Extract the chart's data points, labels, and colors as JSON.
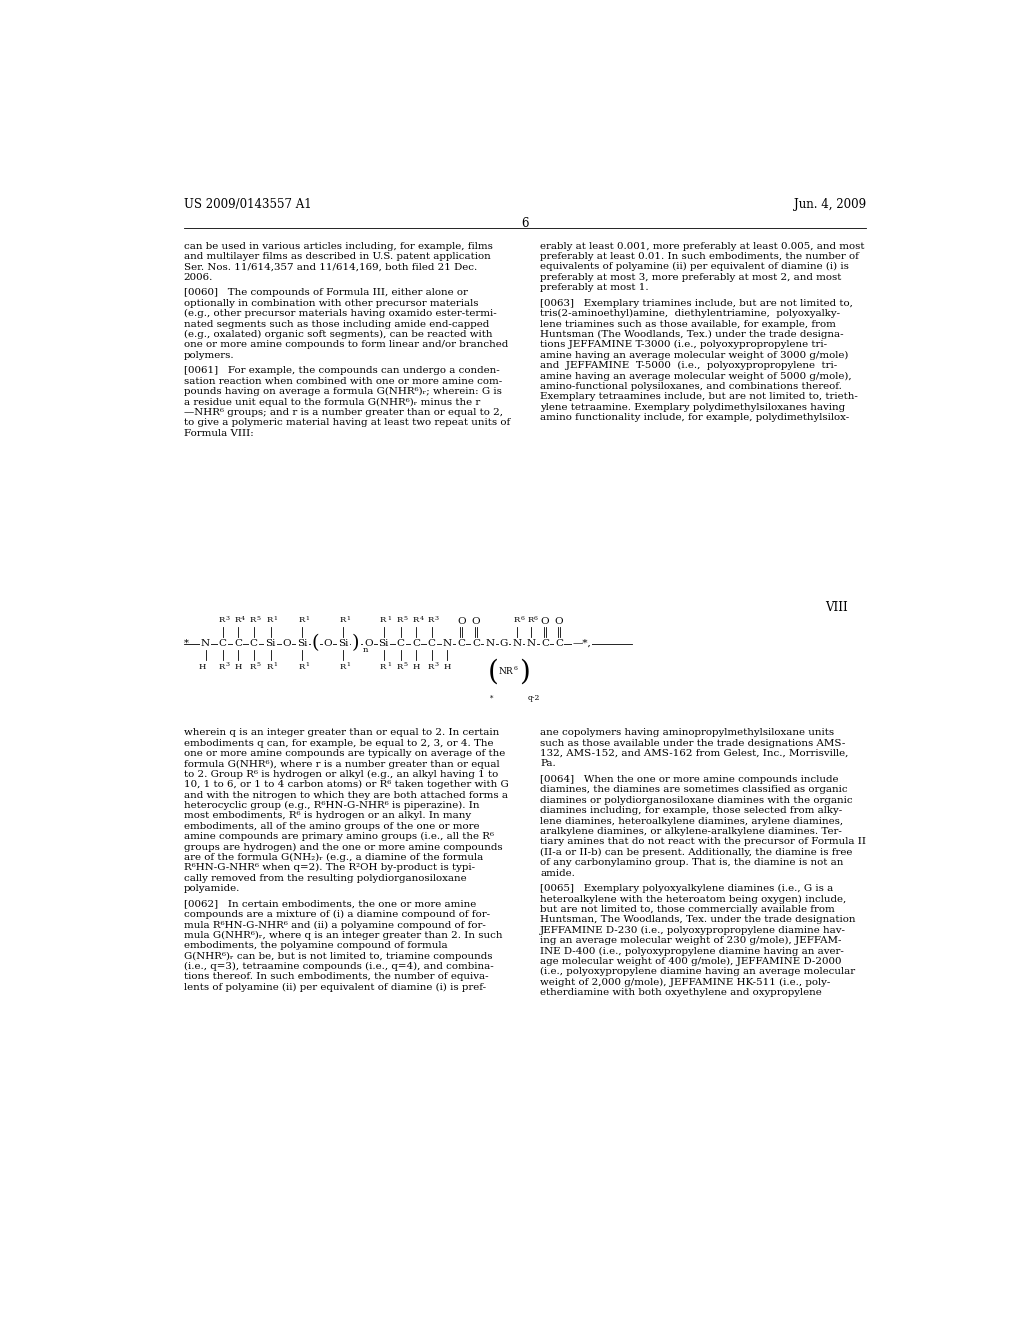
{
  "background_color": "#ffffff",
  "header_left": "US 2009/0143557 A1",
  "header_right": "Jun. 4, 2009",
  "page_number": "6",
  "formula_label": "VIII",
  "body_text_left_col": [
    "can be used in various articles including, for example, films",
    "and multilayer films as described in U.S. patent application",
    "Ser. Nos. 11/614,357 and 11/614,169, both filed 21 Dec.",
    "2006.",
    "",
    "[0060]   The compounds of Formula III, either alone or",
    "optionally in combination with other precursor materials",
    "(e.g., other precursor materials having oxamido ester-termi-",
    "nated segments such as those including amide end-capped",
    "(e.g., oxalated) organic soft segments), can be reacted with",
    "one or more amine compounds to form linear and/or branched",
    "polymers.",
    "",
    "[0061]   For example, the compounds can undergo a conden-",
    "sation reaction when combined with one or more amine com-",
    "pounds having on average a formula G(NHR⁶)ᵣ; wherein: G is",
    "a residue unit equal to the formula G(NHR⁶)ᵣ minus the r",
    "—NHR⁶ groups; and r is a number greater than or equal to 2,",
    "to give a polymeric material having at least two repeat units of",
    "Formula VIII:"
  ],
  "body_text_right_col": [
    "erably at least 0.001, more preferably at least 0.005, and most",
    "preferably at least 0.01. In such embodiments, the number of",
    "equivalents of polyamine (ii) per equivalent of diamine (i) is",
    "preferably at most 3, more preferably at most 2, and most",
    "preferably at most 1.",
    "",
    "[0063]   Exemplary triamines include, but are not limited to,",
    "tris(2-aminoethyl)amine,  diethylentriamine,  polyoxyalky-",
    "lene triamines such as those available, for example, from",
    "Huntsman (The Woodlands, Tex.) under the trade designa-",
    "tions JEFFAMINE T-3000 (i.e., polyoxypropropylene tri-",
    "amine having an average molecular weight of 3000 g/mole)",
    "and  JEFFAMINE  T-5000  (i.e.,  polyoxypropropylene  tri-",
    "amine having an average molecular weight of 5000 g/mole),",
    "amino-functional polysiloxanes, and combinations thereof.",
    "Exemplary tetraamines include, but are not limited to, trieth-",
    "ylene tetraamine. Exemplary polydimethylsiloxanes having",
    "amino functionality include, for example, polydimethylsilox-"
  ],
  "body_text_left_col2": [
    "wherein q is an integer greater than or equal to 2. In certain",
    "embodiments q can, for example, be equal to 2, 3, or 4. The",
    "one or more amine compounds are typically on average of the",
    "formula G(NHR⁶), where r is a number greater than or equal",
    "to 2. Group R⁶ is hydrogen or alkyl (e.g., an alkyl having 1 to",
    "10, 1 to 6, or 1 to 4 carbon atoms) or R⁶ taken together with G",
    "and with the nitrogen to which they are both attached forms a",
    "heterocyclic group (e.g., R⁶HN-G-NHR⁶ is piperazine). In",
    "most embodiments, R⁶ is hydrogen or an alkyl. In many",
    "embodiments, all of the amino groups of the one or more",
    "amine compounds are primary amino groups (i.e., all the R⁶",
    "groups are hydrogen) and the one or more amine compounds",
    "are of the formula G(NH₂)ᵣ (e.g., a diamine of the formula",
    "R⁶HN-G-NHR⁶ when q=2). The R²OH by-product is typi-",
    "cally removed from the resulting polydiorganosiloxane",
    "polyamide.",
    "",
    "[0062]   In certain embodiments, the one or more amine",
    "compounds are a mixture of (i) a diamine compound of for-",
    "mula R⁶HN-G-NHR⁶ and (ii) a polyamine compound of for-",
    "mula G(NHR⁶)ᵣ, where q is an integer greater than 2. In such",
    "embodiments, the polyamine compound of formula",
    "G(NHR⁶)ᵣ can be, but is not limited to, triamine compounds",
    "(i.e., q=3), tetraamine compounds (i.e., q=4), and combina-",
    "tions thereof. In such embodiments, the number of equiva-",
    "lents of polyamine (ii) per equivalent of diamine (i) is pref-"
  ],
  "body_text_right_col2": [
    "ane copolymers having aminopropylmethylsiloxane units",
    "such as those available under the trade designations AMS-",
    "132, AMS-152, and AMS-162 from Gelest, Inc., Morrisville,",
    "Pa.",
    "",
    "[0064]   When the one or more amine compounds include",
    "diamines, the diamines are sometimes classified as organic",
    "diamines or polydiorganosiloxane diamines with the organic",
    "diamines including, for example, those selected from alky-",
    "lene diamines, heteroalkylene diamines, arylene diamines,",
    "aralkylene diamines, or alkylene-aralkylene diamines. Ter-",
    "tiary amines that do not react with the precursor of Formula II",
    "(II-a or II-b) can be present. Additionally, the diamine is free",
    "of any carbonylamino group. That is, the diamine is not an",
    "amide.",
    "",
    "[0065]   Exemplary polyoxyalkylene diamines (i.e., G is a",
    "heteroalkylene with the heteroatom being oxygen) include,",
    "but are not limited to, those commercially available from",
    "Huntsman, The Woodlands, Tex. under the trade designation",
    "JEFFAMINE D-230 (i.e., polyoxypropropylene diamine hav-",
    "ing an average molecular weight of 230 g/mole), JEFFAM-",
    "INE D-400 (i.e., polyoxypropylene diamine having an aver-",
    "age molecular weight of 400 g/mole), JEFFAMINE D-2000",
    "(i.e., polyoxypropylene diamine having an average molecular",
    "weight of 2,000 g/mole), JEFFAMINE HK-511 (i.e., poly-",
    "etherdiamine with both oxyethylene and oxypropylene"
  ]
}
